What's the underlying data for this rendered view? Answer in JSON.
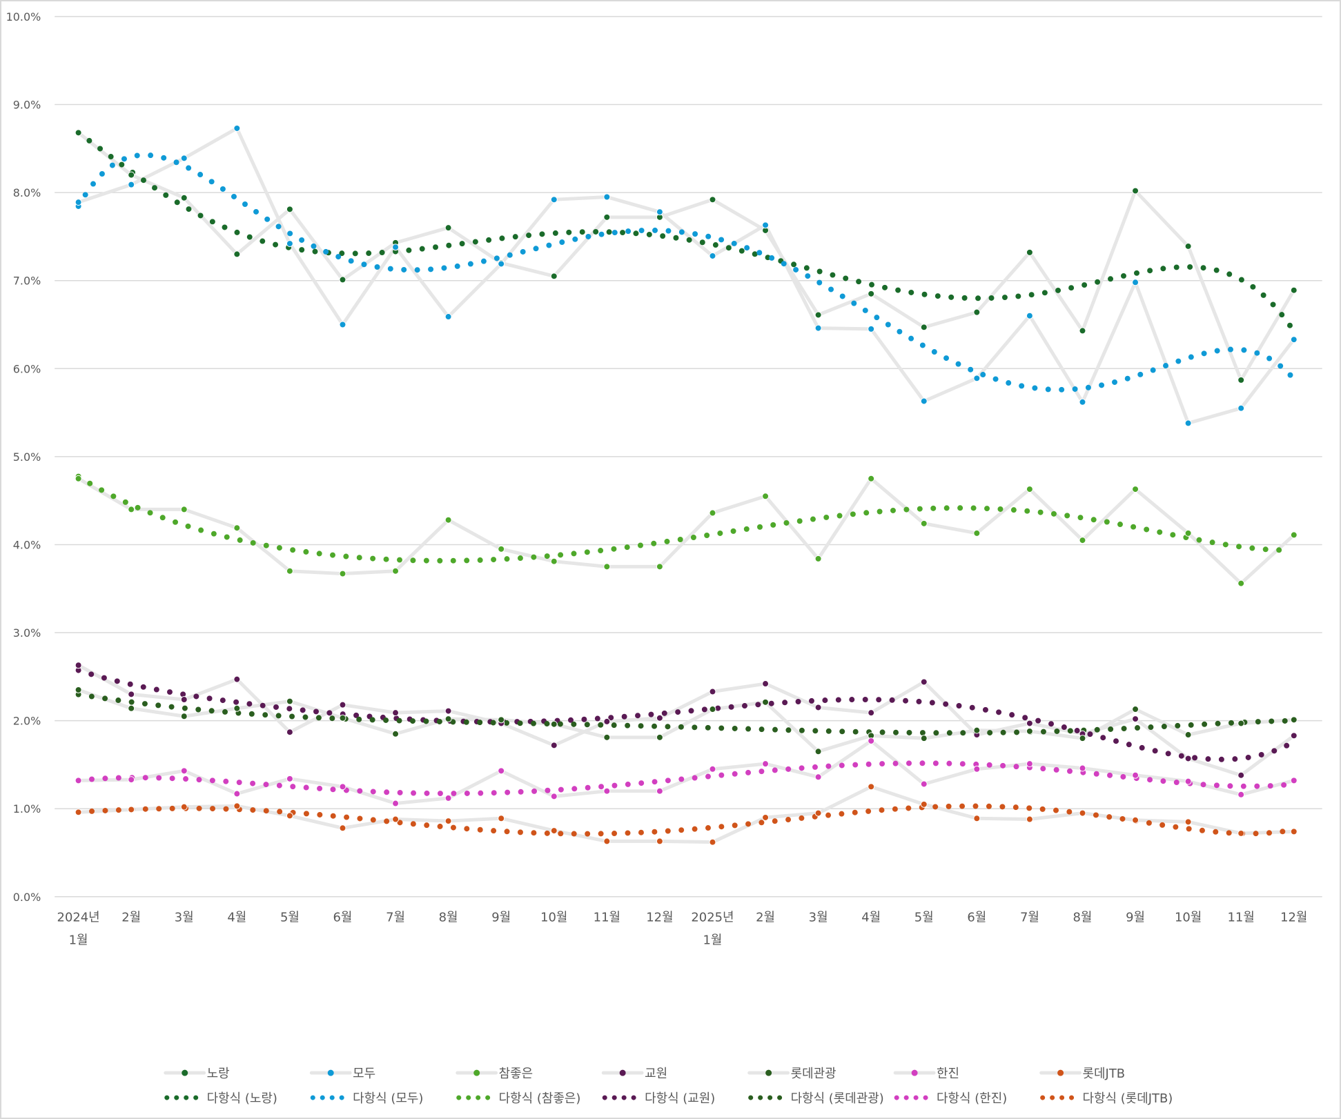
{
  "chart_data": {
    "type": "line",
    "title": "",
    "xlabel": "",
    "ylabel": "",
    "ylim": [
      0,
      10
    ],
    "yticks": [
      "0.0%",
      "1.0%",
      "2.0%",
      "3.0%",
      "4.0%",
      "5.0%",
      "6.0%",
      "7.0%",
      "8.0%",
      "9.0%",
      "10.0%"
    ],
    "grid": true,
    "legend_position": "bottom",
    "categories": [
      [
        "2024년",
        "1월"
      ],
      [
        "2월"
      ],
      [
        "3월"
      ],
      [
        "4월"
      ],
      [
        "5월"
      ],
      [
        "6월"
      ],
      [
        "7월"
      ],
      [
        "8월"
      ],
      [
        "9월"
      ],
      [
        "10월"
      ],
      [
        "11월"
      ],
      [
        "12월"
      ],
      [
        "2025년",
        "1월"
      ],
      [
        "2월"
      ],
      [
        "3월"
      ],
      [
        "4월"
      ],
      [
        "5월"
      ],
      [
        "6월"
      ],
      [
        "7월"
      ],
      [
        "8월"
      ],
      [
        "9월"
      ],
      [
        "10월"
      ],
      [
        "11월"
      ],
      [
        "12월"
      ]
    ],
    "trendline": {
      "type": "polynomial",
      "order": 6,
      "label_prefix": "다항식"
    },
    "series": [
      {
        "name": "노랑",
        "trend_label": "다항식 (노랑)",
        "color": "#1a6b2a",
        "values": [
          8.68,
          8.2,
          7.94,
          7.3,
          7.81,
          7.01,
          7.43,
          7.6,
          7.2,
          7.05,
          7.72,
          7.72,
          7.92,
          7.57,
          6.61,
          6.85,
          6.47,
          6.64,
          7.32,
          6.43,
          8.02,
          7.39,
          5.87,
          6.89
        ]
      },
      {
        "name": "모두",
        "trend_label": "다항식 (모두)",
        "color": "#0f9ad6",
        "values": [
          7.89,
          8.09,
          8.39,
          8.73,
          7.42,
          6.5,
          7.38,
          6.59,
          7.19,
          7.92,
          7.95,
          7.78,
          7.28,
          7.63,
          6.46,
          6.45,
          5.63,
          5.89,
          6.6,
          5.62,
          6.98,
          5.38,
          5.55,
          6.33
        ]
      },
      {
        "name": "참좋은",
        "trend_label": "다항식 (참좋은)",
        "color": "#4ea82a",
        "values": [
          4.75,
          4.4,
          4.4,
          4.19,
          3.7,
          3.67,
          3.7,
          4.28,
          3.95,
          3.81,
          3.75,
          3.75,
          4.36,
          4.55,
          3.84,
          4.75,
          4.24,
          4.13,
          4.63,
          4.05,
          4.63,
          4.13,
          3.56,
          4.11
        ]
      },
      {
        "name": "교원",
        "trend_label": "다항식 (교원)",
        "color": "#5a1a54",
        "values": [
          2.63,
          2.3,
          2.24,
          2.47,
          1.87,
          2.18,
          2.09,
          2.11,
          1.97,
          1.72,
          1.99,
          2.03,
          2.33,
          2.42,
          2.15,
          2.09,
          2.44,
          1.84,
          1.97,
          1.85,
          2.02,
          1.57,
          1.38,
          1.83
        ]
      },
      {
        "name": "롯데관광",
        "trend_label": "다항식 (롯데관광)",
        "color": "#2a5e1f",
        "values": [
          2.35,
          2.14,
          2.05,
          2.14,
          2.22,
          2.03,
          1.85,
          2.02,
          2.01,
          1.96,
          1.81,
          1.81,
          2.13,
          2.21,
          1.65,
          1.83,
          1.8,
          1.89,
          1.88,
          1.8,
          2.13,
          1.84,
          1.97,
          2.01
        ]
      },
      {
        "name": "한진",
        "trend_label": "다항식 (한진)",
        "color": "#d23fc0",
        "values": [
          1.32,
          1.33,
          1.43,
          1.17,
          1.34,
          1.25,
          1.06,
          1.12,
          1.43,
          1.14,
          1.2,
          1.2,
          1.45,
          1.51,
          1.36,
          1.77,
          1.28,
          1.45,
          1.51,
          1.46,
          1.38,
          1.31,
          1.16,
          1.32
        ]
      },
      {
        "name": "롯데JTB",
        "trend_label": "다항식 (롯데JTB)",
        "color": "#d0541a",
        "values": [
          0.96,
          0.99,
          1.02,
          1.03,
          0.92,
          0.78,
          0.88,
          0.86,
          0.89,
          0.75,
          0.63,
          0.63,
          0.62,
          0.9,
          0.95,
          1.25,
          1.05,
          0.89,
          0.88,
          0.95,
          0.87,
          0.85,
          0.72,
          0.74
        ]
      }
    ]
  }
}
